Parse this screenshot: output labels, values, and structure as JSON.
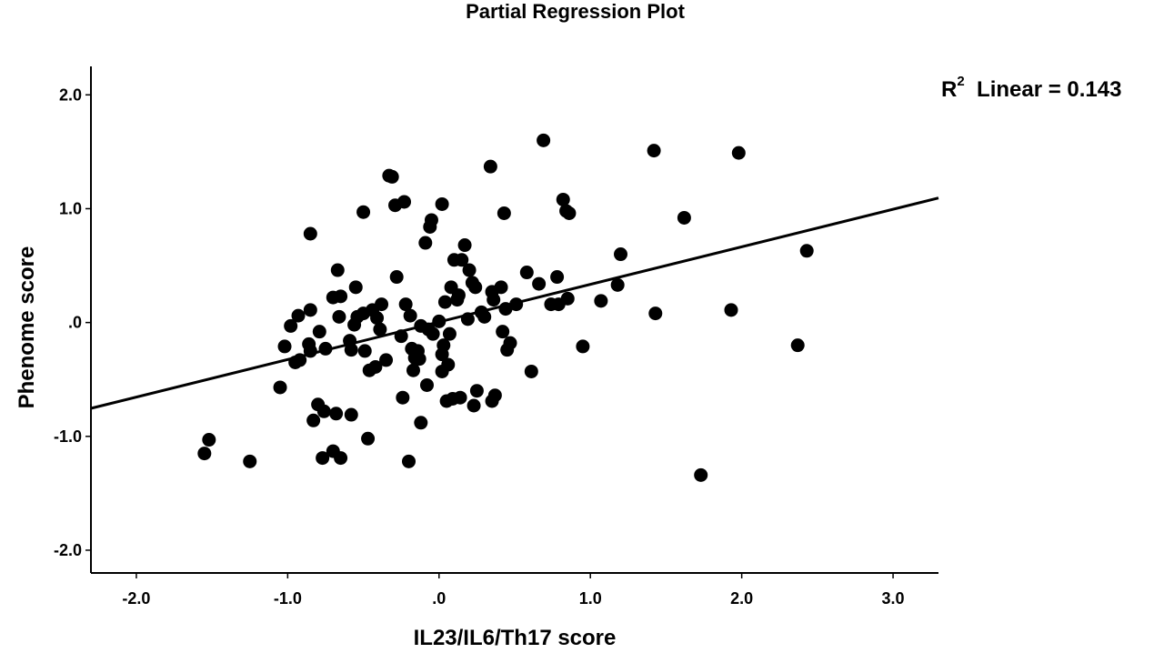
{
  "chart_data": {
    "type": "scatter",
    "title": "Partial Regression Plot",
    "xlabel": "IL23/IL6/Th17 score",
    "ylabel": "Phenome score",
    "xlim": [
      -2.3,
      3.3
    ],
    "ylim": [
      -2.2,
      2.25
    ],
    "xticks": [
      -2.0,
      -1.0,
      0.0,
      1.0,
      2.0,
      3.0
    ],
    "xtick_labels": [
      "-2.0",
      "-1.0",
      ".0",
      "1.0",
      "2.0",
      "3.0"
    ],
    "yticks": [
      2.0,
      1.0,
      0.0,
      -1.0,
      -2.0
    ],
    "ytick_labels": [
      "2.0",
      "1.0",
      ".0",
      "-1.0",
      "-2.0"
    ],
    "annotation": {
      "prefix": "R",
      "sup": "2",
      "text": "Linear = 0.143"
    },
    "fit_line": {
      "slope": 0.33,
      "intercept": 0.005
    },
    "grid": false,
    "points": [
      [
        -1.55,
        -1.15
      ],
      [
        -1.52,
        -1.03
      ],
      [
        -1.25,
        -1.22
      ],
      [
        -1.05,
        -0.57
      ],
      [
        -1.02,
        -0.21
      ],
      [
        -0.98,
        -0.03
      ],
      [
        -0.95,
        -0.35
      ],
      [
        -0.93,
        0.06
      ],
      [
        -0.92,
        -0.33
      ],
      [
        -0.86,
        -0.19
      ],
      [
        -0.85,
        0.11
      ],
      [
        -0.85,
        -0.25
      ],
      [
        -0.85,
        0.78
      ],
      [
        -0.83,
        -0.86
      ],
      [
        -0.8,
        -0.72
      ],
      [
        -0.79,
        -0.08
      ],
      [
        -0.77,
        -1.19
      ],
      [
        -0.76,
        -0.78
      ],
      [
        -0.75,
        -0.23
      ],
      [
        -0.7,
        -1.13
      ],
      [
        -0.7,
        0.22
      ],
      [
        -0.68,
        -0.8
      ],
      [
        -0.67,
        0.46
      ],
      [
        -0.66,
        0.05
      ],
      [
        -0.65,
        -1.19
      ],
      [
        -0.65,
        0.23
      ],
      [
        -0.59,
        -0.16
      ],
      [
        -0.58,
        -0.81
      ],
      [
        -0.58,
        -0.24
      ],
      [
        -0.56,
        -0.02
      ],
      [
        -0.55,
        0.31
      ],
      [
        -0.54,
        0.05
      ],
      [
        -0.5,
        0.08
      ],
      [
        -0.5,
        0.97
      ],
      [
        -0.49,
        -0.25
      ],
      [
        -0.47,
        -1.02
      ],
      [
        -0.46,
        -0.42
      ],
      [
        -0.44,
        0.11
      ],
      [
        -0.42,
        -0.39
      ],
      [
        -0.41,
        0.04
      ],
      [
        -0.39,
        -0.06
      ],
      [
        -0.38,
        0.16
      ],
      [
        -0.35,
        -0.33
      ],
      [
        -0.33,
        1.29
      ],
      [
        -0.31,
        1.28
      ],
      [
        -0.29,
        1.03
      ],
      [
        -0.28,
        0.4
      ],
      [
        -0.25,
        -0.12
      ],
      [
        -0.24,
        -0.66
      ],
      [
        -0.23,
        1.06
      ],
      [
        -0.22,
        0.16
      ],
      [
        -0.2,
        -1.22
      ],
      [
        -0.19,
        0.06
      ],
      [
        -0.18,
        -0.23
      ],
      [
        -0.17,
        -0.42
      ],
      [
        -0.16,
        -0.31
      ],
      [
        -0.14,
        -0.25
      ],
      [
        -0.13,
        -0.32
      ],
      [
        -0.12,
        -0.88
      ],
      [
        -0.12,
        -0.03
      ],
      [
        -0.09,
        0.7
      ],
      [
        -0.08,
        -0.55
      ],
      [
        -0.07,
        -0.06
      ],
      [
        -0.06,
        0.84
      ],
      [
        -0.05,
        0.9
      ],
      [
        -0.04,
        -0.1
      ],
      [
        0.0,
        0.01
      ],
      [
        0.02,
        1.04
      ],
      [
        0.02,
        -0.28
      ],
      [
        0.02,
        -0.43
      ],
      [
        0.03,
        -0.2
      ],
      [
        0.04,
        0.18
      ],
      [
        0.05,
        -0.69
      ],
      [
        0.06,
        -0.37
      ],
      [
        0.07,
        -0.1
      ],
      [
        0.08,
        0.31
      ],
      [
        0.09,
        -0.67
      ],
      [
        0.1,
        0.55
      ],
      [
        0.12,
        0.2
      ],
      [
        0.13,
        0.24
      ],
      [
        0.14,
        -0.66
      ],
      [
        0.15,
        0.55
      ],
      [
        0.17,
        0.68
      ],
      [
        0.19,
        0.03
      ],
      [
        0.2,
        0.46
      ],
      [
        0.22,
        0.35
      ],
      [
        0.23,
        -0.73
      ],
      [
        0.24,
        0.31
      ],
      [
        0.25,
        -0.6
      ],
      [
        0.28,
        0.09
      ],
      [
        0.3,
        0.05
      ],
      [
        0.34,
        1.37
      ],
      [
        0.35,
        0.27
      ],
      [
        0.35,
        -0.69
      ],
      [
        0.36,
        0.2
      ],
      [
        0.37,
        -0.64
      ],
      [
        0.41,
        0.31
      ],
      [
        0.42,
        -0.08
      ],
      [
        0.43,
        0.96
      ],
      [
        0.44,
        0.12
      ],
      [
        0.45,
        -0.24
      ],
      [
        0.47,
        -0.18
      ],
      [
        0.51,
        0.16
      ],
      [
        0.58,
        0.44
      ],
      [
        0.61,
        -0.43
      ],
      [
        0.66,
        0.34
      ],
      [
        0.69,
        1.6
      ],
      [
        0.74,
        0.16
      ],
      [
        0.78,
        0.4
      ],
      [
        0.79,
        0.16
      ],
      [
        0.82,
        1.08
      ],
      [
        0.84,
        0.98
      ],
      [
        0.85,
        0.21
      ],
      [
        0.86,
        0.96
      ],
      [
        0.95,
        -0.21
      ],
      [
        1.07,
        0.19
      ],
      [
        1.18,
        0.33
      ],
      [
        1.2,
        0.6
      ],
      [
        1.42,
        1.51
      ],
      [
        1.43,
        0.08
      ],
      [
        1.62,
        0.92
      ],
      [
        1.73,
        -1.34
      ],
      [
        1.93,
        0.11
      ],
      [
        1.98,
        1.49
      ],
      [
        2.37,
        -0.2
      ],
      [
        2.43,
        0.63
      ]
    ]
  }
}
